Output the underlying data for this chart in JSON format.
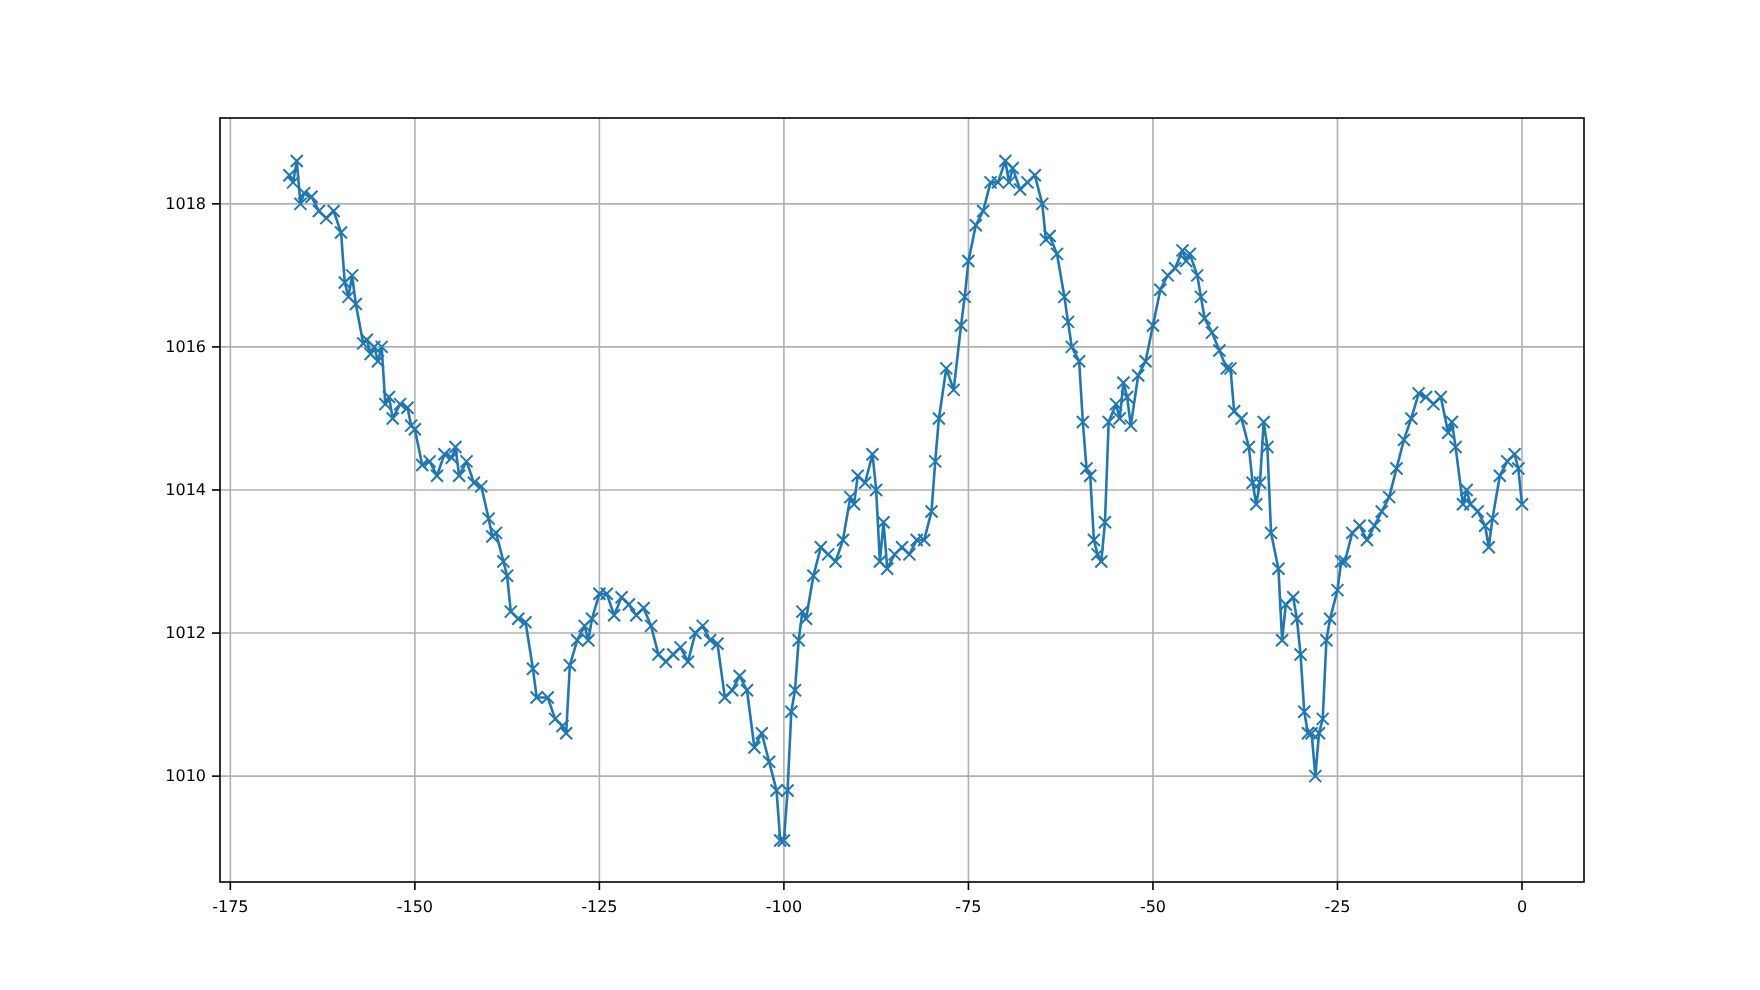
{
  "chart_data": {
    "type": "line",
    "xlim": [
      -176.4,
      8.4
    ],
    "ylim": [
      1008.52,
      1019.2
    ],
    "xticks": [
      -175,
      -150,
      -125,
      -100,
      -75,
      -50,
      -25,
      0
    ],
    "yticks": [
      1010,
      1012,
      1014,
      1016,
      1018
    ],
    "grid": true,
    "marker": "cross",
    "line_style": "solid",
    "series": [
      {
        "color": "#1f77b4",
        "x": [
          -167,
          -166.5,
          -166,
          -165.5,
          -165,
          -164,
          -163,
          -162,
          -161,
          -160,
          -159.5,
          -159,
          -158.5,
          -158,
          -157,
          -156.5,
          -156,
          -155.5,
          -155,
          -154.5,
          -154,
          -153.5,
          -153,
          -152,
          -151,
          -150.5,
          -150,
          -149,
          -148,
          -147,
          -146,
          -145,
          -144.5,
          -144,
          -143,
          -142,
          -141,
          -140,
          -139.5,
          -139,
          -138,
          -137.5,
          -137,
          -136,
          -135,
          -134,
          -133.5,
          -132,
          -131,
          -130,
          -129.5,
          -129,
          -128,
          -127,
          -126.5,
          -126,
          -125,
          -124,
          -123,
          -122,
          -121,
          -120,
          -119,
          -118,
          -117,
          -116,
          -115,
          -114,
          -113,
          -112,
          -111,
          -110,
          -109,
          -108,
          -107,
          -106,
          -105,
          -104,
          -103,
          -102,
          -101,
          -100.5,
          -100,
          -99.5,
          -99,
          -98.5,
          -98,
          -97.5,
          -97,
          -96,
          -95,
          -94,
          -93,
          -92,
          -91,
          -90.5,
          -90,
          -89,
          -88,
          -87.5,
          -87,
          -86.5,
          -86,
          -85,
          -84,
          -83,
          -82,
          -81,
          -80,
          -79.5,
          -79,
          -78,
          -77,
          -76,
          -75.5,
          -75,
          -74,
          -73,
          -72,
          -71,
          -70,
          -69.5,
          -69,
          -68,
          -67,
          -66,
          -65,
          -64.5,
          -64,
          -63,
          -62,
          -61.5,
          -61,
          -60,
          -59.5,
          -59,
          -58.5,
          -58,
          -57.5,
          -57,
          -56.5,
          -56,
          -55,
          -54.5,
          -54,
          -53.5,
          -53,
          -52,
          -51,
          -50,
          -49,
          -48,
          -47,
          -46,
          -45.5,
          -45,
          -44,
          -43.5,
          -43,
          -42,
          -41,
          -40,
          -39.5,
          -39,
          -38,
          -37,
          -36.5,
          -36,
          -35.5,
          -35,
          -34.5,
          -34,
          -33,
          -32.5,
          -32,
          -31,
          -30.5,
          -30,
          -29.5,
          -29,
          -28.5,
          -28,
          -27.5,
          -27,
          -26.5,
          -26,
          -25,
          -24.5,
          -24,
          -23,
          -22,
          -21,
          -20,
          -19,
          -18,
          -17,
          -16,
          -15,
          -14,
          -13,
          -12,
          -11,
          -10,
          -9.5,
          -9,
          -8,
          -7.5,
          -7,
          -6,
          -5,
          -4.5,
          -4,
          -3,
          -2,
          -1,
          -0.5,
          0
        ],
        "values": [
          1018.4,
          1018.3,
          1018.6,
          1018.0,
          1018.15,
          1018.1,
          1017.9,
          1017.8,
          1017.9,
          1017.6,
          1016.9,
          1016.7,
          1017.0,
          1016.6,
          1016.05,
          1016.1,
          1015.9,
          1016.0,
          1015.8,
          1016.0,
          1015.2,
          1015.3,
          1015.0,
          1015.2,
          1015.15,
          1014.9,
          1014.85,
          1014.35,
          1014.4,
          1014.2,
          1014.5,
          1014.45,
          1014.6,
          1014.2,
          1014.4,
          1014.1,
          1014.05,
          1013.6,
          1013.35,
          1013.4,
          1013.0,
          1012.8,
          1012.3,
          1012.2,
          1012.15,
          1011.5,
          1011.1,
          1011.1,
          1010.8,
          1010.7,
          1010.6,
          1011.55,
          1011.9,
          1012.1,
          1011.9,
          1012.2,
          1012.55,
          1012.55,
          1012.25,
          1012.5,
          1012.4,
          1012.25,
          1012.35,
          1012.1,
          1011.7,
          1011.6,
          1011.7,
          1011.8,
          1011.6,
          1012.0,
          1012.1,
          1011.9,
          1011.85,
          1011.1,
          1011.2,
          1011.4,
          1011.2,
          1010.4,
          1010.6,
          1010.2,
          1009.8,
          1009.1,
          1009.1,
          1009.8,
          1010.9,
          1011.2,
          1011.9,
          1012.3,
          1012.2,
          1012.8,
          1013.2,
          1013.1,
          1013.0,
          1013.3,
          1013.9,
          1013.8,
          1014.2,
          1014.1,
          1014.5,
          1014.0,
          1013.0,
          1013.55,
          1012.9,
          1013.1,
          1013.2,
          1013.1,
          1013.3,
          1013.3,
          1013.7,
          1014.4,
          1015.0,
          1015.7,
          1015.4,
          1016.3,
          1016.7,
          1017.2,
          1017.7,
          1017.9,
          1018.3,
          1018.3,
          1018.6,
          1018.3,
          1018.5,
          1018.2,
          1018.3,
          1018.4,
          1018.0,
          1017.5,
          1017.55,
          1017.3,
          1016.7,
          1016.35,
          1016.0,
          1015.8,
          1014.95,
          1014.3,
          1014.2,
          1013.3,
          1013.1,
          1013.0,
          1013.55,
          1014.95,
          1015.2,
          1015.0,
          1015.5,
          1015.3,
          1014.9,
          1015.6,
          1015.8,
          1016.3,
          1016.8,
          1017.0,
          1017.1,
          1017.35,
          1017.2,
          1017.3,
          1017.0,
          1016.7,
          1016.4,
          1016.2,
          1015.95,
          1015.7,
          1015.7,
          1015.1,
          1015.0,
          1014.6,
          1014.1,
          1013.8,
          1014.1,
          1014.95,
          1014.6,
          1013.4,
          1012.9,
          1011.9,
          1012.4,
          1012.5,
          1012.2,
          1011.7,
          1010.9,
          1010.6,
          1010.6,
          1010.0,
          1010.6,
          1010.8,
          1011.9,
          1012.2,
          1012.6,
          1013.0,
          1013.0,
          1013.4,
          1013.5,
          1013.3,
          1013.5,
          1013.7,
          1013.9,
          1014.3,
          1014.7,
          1015.0,
          1015.35,
          1015.3,
          1015.2,
          1015.3,
          1014.8,
          1014.95,
          1014.6,
          1013.8,
          1014.0,
          1013.8,
          1013.7,
          1013.5,
          1013.2,
          1013.6,
          1014.2,
          1014.4,
          1014.5,
          1014.3,
          1013.8
        ]
      }
    ]
  }
}
